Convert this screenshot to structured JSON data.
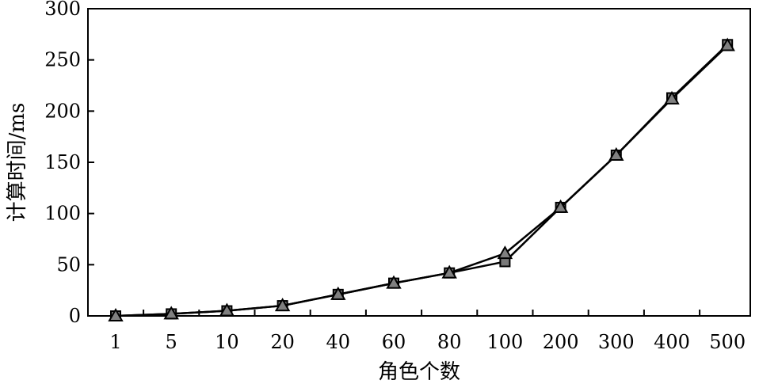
{
  "chart_data": {
    "type": "line",
    "xlabel": "角色个数",
    "ylabel": "计算时间/ms",
    "categories": [
      "1",
      "5",
      "10",
      "20",
      "40",
      "60",
      "80",
      "100",
      "200",
      "300",
      "400",
      "500"
    ],
    "ylim": [
      0,
      300
    ],
    "yticks": [
      0,
      50,
      100,
      150,
      200,
      250,
      300
    ],
    "grid": false,
    "series": [
      {
        "marker": "square",
        "values": [
          0,
          2,
          5,
          10,
          21,
          32,
          42,
          53,
          106,
          157,
          213,
          265
        ]
      },
      {
        "marker": "triangle",
        "values": [
          0,
          2,
          5,
          10,
          21,
          32,
          42,
          61,
          106,
          157,
          212,
          264
        ]
      }
    ]
  }
}
